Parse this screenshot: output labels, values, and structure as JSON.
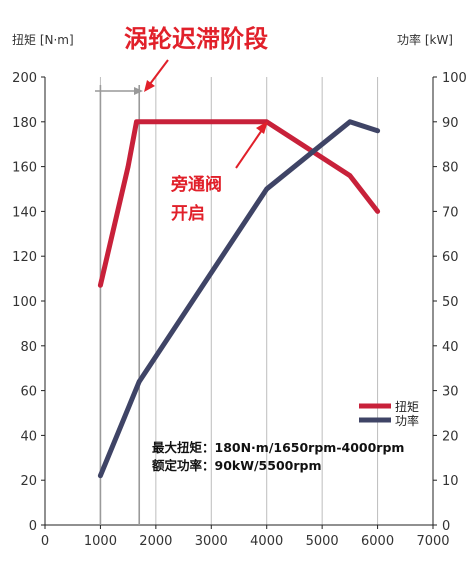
{
  "chart_data": {
    "type": "line",
    "x": [],
    "xlim": [
      0,
      7000
    ],
    "x_ticks": [
      "0",
      "1000",
      "2000",
      "3000",
      "4000",
      "5000",
      "6000",
      "7000"
    ],
    "ylabel_left": "扭矩 [N·m]",
    "ylabel_right": "功率 [kW]",
    "ylim_left": [
      0,
      200
    ],
    "ylim_right": [
      0,
      100
    ],
    "y_ticks_left": [
      "0",
      "20",
      "40",
      "60",
      "80",
      "100",
      "120",
      "140",
      "160",
      "180",
      "200"
    ],
    "y_ticks_right": [
      "0",
      "10",
      "20",
      "30",
      "40",
      "50",
      "60",
      "70",
      "80",
      "90",
      "100"
    ],
    "grid": "vertical",
    "series": [
      {
        "name": "扭矩",
        "axis": "left",
        "color": "#c8213a",
        "points": [
          [
            1000,
            107
          ],
          [
            1500,
            160
          ],
          [
            1650,
            180
          ],
          [
            4000,
            180
          ],
          [
            5500,
            156
          ],
          [
            6000,
            140
          ]
        ]
      },
      {
        "name": "功率",
        "axis": "right",
        "color": "#3f4466",
        "points": [
          [
            1000,
            11
          ],
          [
            1700,
            32
          ],
          [
            4000,
            75
          ],
          [
            5500,
            90
          ],
          [
            6000,
            88
          ]
        ]
      }
    ],
    "annotations": {
      "title": "涡轮迟滞阶段",
      "wastegate_line1": "旁通阀",
      "wastegate_line2": "开启",
      "spec_line1": "最大扭矩：180N·m/1650rpm-4000rpm",
      "spec_line2": "额定功率：90kW/5500rpm"
    },
    "legend": "right, inside plot",
    "reference_lines_x": [
      1000,
      1700
    ]
  }
}
